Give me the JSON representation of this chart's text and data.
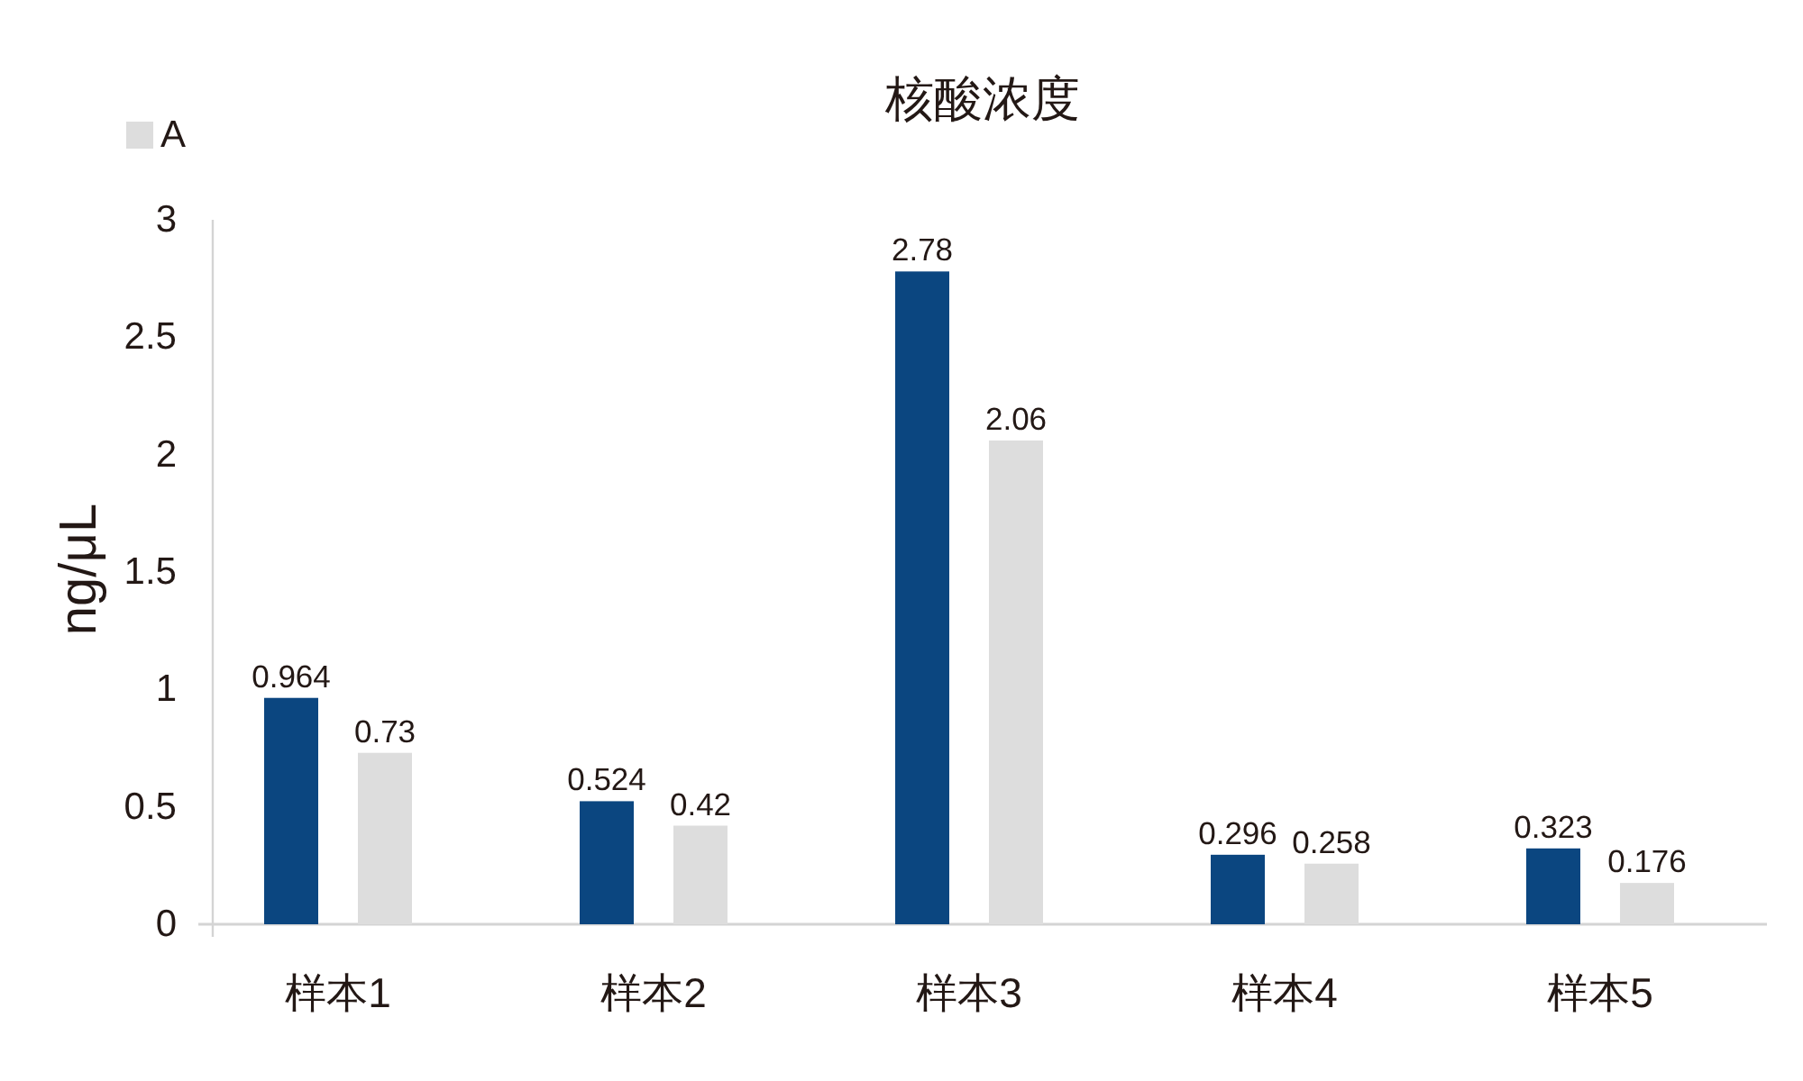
{
  "chart_data": {
    "type": "bar",
    "title": "核酸浓度",
    "ylabel": "ng/μL",
    "categories": [
      "样本1",
      "样本2",
      "样本3",
      "样本4",
      "样本5"
    ],
    "series": [
      {
        "color": "#0b4680",
        "values": [
          0.964,
          0.524,
          2.78,
          0.296,
          0.323
        ]
      },
      {
        "name": "A",
        "color": "#dddddd",
        "values": [
          0.73,
          0.42,
          2.06,
          0.258,
          0.176
        ]
      }
    ],
    "ylim": [
      0,
      3
    ],
    "yticks": [
      0,
      0.5,
      1,
      1.5,
      2,
      2.5,
      3
    ],
    "data_labels": true,
    "legend": "top left"
  }
}
